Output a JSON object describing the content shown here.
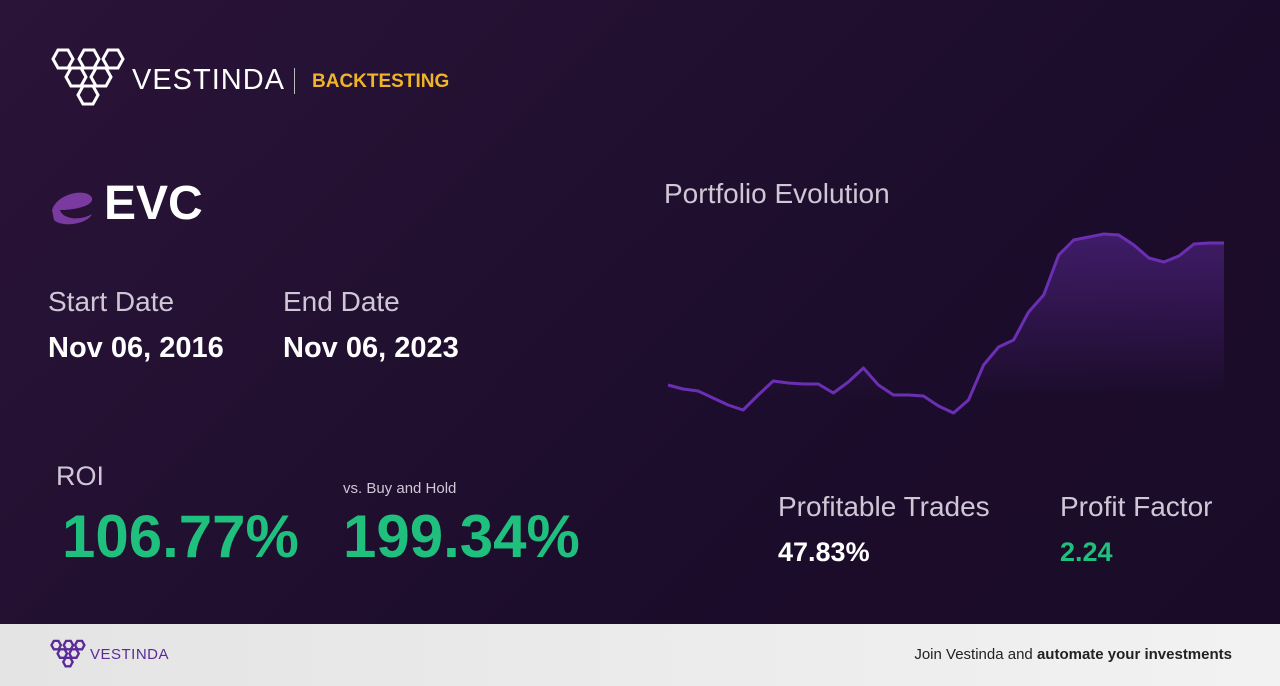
{
  "header": {
    "brand": "VESTINDA",
    "section": "BACKTESTING"
  },
  "ticker": "EVC",
  "dates": {
    "start_label": "Start Date",
    "start": "Nov 06, 2016",
    "end_label": "End Date",
    "end": "Nov 06, 2023"
  },
  "roi": {
    "label": "ROI",
    "value": "106.77%",
    "vs_label": "vs. Buy and Hold",
    "vs_value": "199.34%"
  },
  "stats": {
    "trades_label": "Profitable Trades",
    "trades_value": "47.83%",
    "factor_label": "Profit Factor",
    "factor_value": "2.24"
  },
  "chart_data": {
    "type": "line",
    "title": "Portfolio Evolution",
    "color": "#6b2fb3",
    "values": [
      30,
      26,
      24,
      17,
      10,
      5,
      20,
      34,
      32,
      31,
      31,
      22,
      33,
      47,
      30,
      20,
      20,
      19,
      9,
      2,
      15,
      50,
      68,
      75,
      103,
      120,
      160,
      175,
      178,
      181,
      180,
      170,
      157,
      153,
      159,
      171,
      172,
      172
    ],
    "ylim": [
      0,
      190
    ]
  },
  "footer": {
    "brand": "VESTINDA",
    "text": "Join Vestinda and",
    "bold": "automate your investments"
  }
}
